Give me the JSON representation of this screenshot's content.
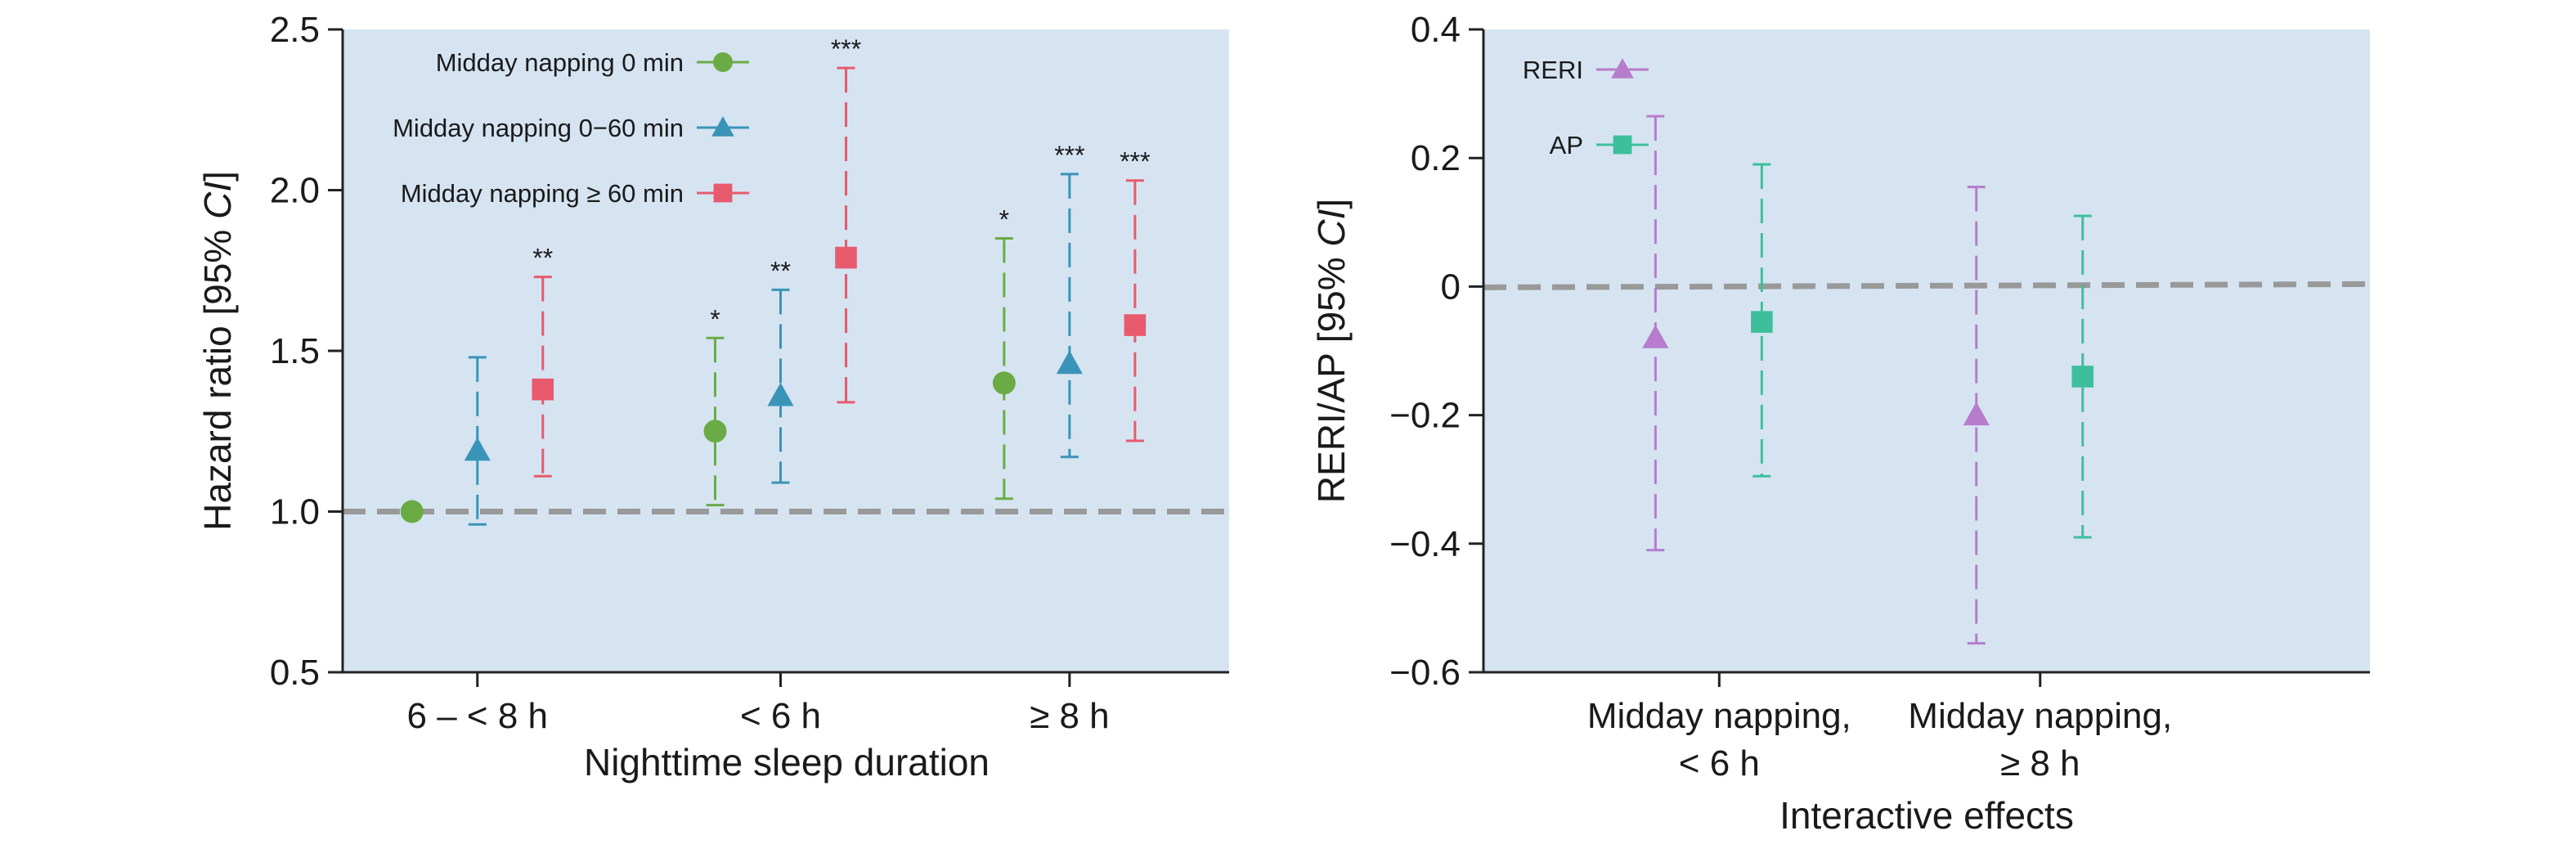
{
  "chart_data": [
    {
      "type": "scatter",
      "subtype": "error-bar",
      "title": "",
      "xlabel": "Nighttime sleep duration",
      "ylabel": "Hazard ratio [95% CI]",
      "ylabel_parts": [
        "Hazard ratio [95% ",
        "CI",
        "]"
      ],
      "ylim": [
        0.5,
        2.5
      ],
      "yticks": [
        0.5,
        1.0,
        1.5,
        2.0,
        2.5
      ],
      "ytick_labels": [
        "0.5",
        "1.0",
        "1.5",
        "2.0",
        "2.5"
      ],
      "categories": [
        "6 – < 8 h",
        "< 6 h",
        "≥ 8 h"
      ],
      "reference_line": 1.0,
      "background": "#d6e4f2",
      "legend_position": "top-left",
      "series": [
        {
          "name": "Midday napping 0 min",
          "marker": "circle",
          "color": "#6aab45",
          "values": [
            1.0,
            1.25,
            1.4
          ],
          "lower": [
            null,
            1.02,
            1.04
          ],
          "upper": [
            null,
            1.54,
            1.85
          ],
          "significance": [
            "",
            "*",
            "*"
          ]
        },
        {
          "name": "Midday napping 0−60 min",
          "marker": "triangle",
          "color": "#3a94b8",
          "values": [
            1.19,
            1.36,
            1.46
          ],
          "lower": [
            0.96,
            1.09,
            1.17
          ],
          "upper": [
            1.48,
            1.69,
            2.05
          ],
          "significance": [
            "",
            "**",
            "***"
          ]
        },
        {
          "name": "Midday napping ≥ 60 min",
          "marker": "square",
          "color": "#e85a6e",
          "values": [
            1.38,
            1.79,
            1.58
          ],
          "lower": [
            1.11,
            1.34,
            1.22
          ],
          "upper": [
            1.73,
            2.38,
            2.03
          ],
          "significance": [
            "**",
            "***",
            "***"
          ]
        }
      ]
    },
    {
      "type": "scatter",
      "subtype": "error-bar",
      "title": "",
      "xlabel": "Interactive effects",
      "ylabel": "RERI/AP [95% CI]",
      "ylabel_parts": [
        "RERI/AP [95% ",
        "CI",
        "]"
      ],
      "ylim": [
        -0.6,
        0.4
      ],
      "yticks": [
        -0.6,
        -0.4,
        -0.2,
        0,
        0.2,
        0.4
      ],
      "ytick_labels": [
        "−0.6",
        "−0.4",
        "−0.2",
        "0",
        "0.2",
        "0.4"
      ],
      "categories": [
        [
          "Midday napping,",
          "< 6 h"
        ],
        [
          "Midday napping,",
          "≥ 8 h"
        ]
      ],
      "reference_line": 0,
      "background": "#d6e4f2",
      "legend_position": "top-left",
      "series": [
        {
          "name": "RERI",
          "marker": "triangle",
          "color": "#b77ccc",
          "values": [
            -0.08,
            -0.2
          ],
          "lower": [
            -0.41,
            -0.555
          ],
          "upper": [
            0.265,
            0.155
          ]
        },
        {
          "name": "AP",
          "marker": "square",
          "color": "#3dbf9c",
          "values": [
            -0.055,
            -0.14
          ],
          "lower": [
            -0.295,
            -0.39
          ],
          "upper": [
            0.19,
            0.11
          ]
        }
      ]
    }
  ]
}
